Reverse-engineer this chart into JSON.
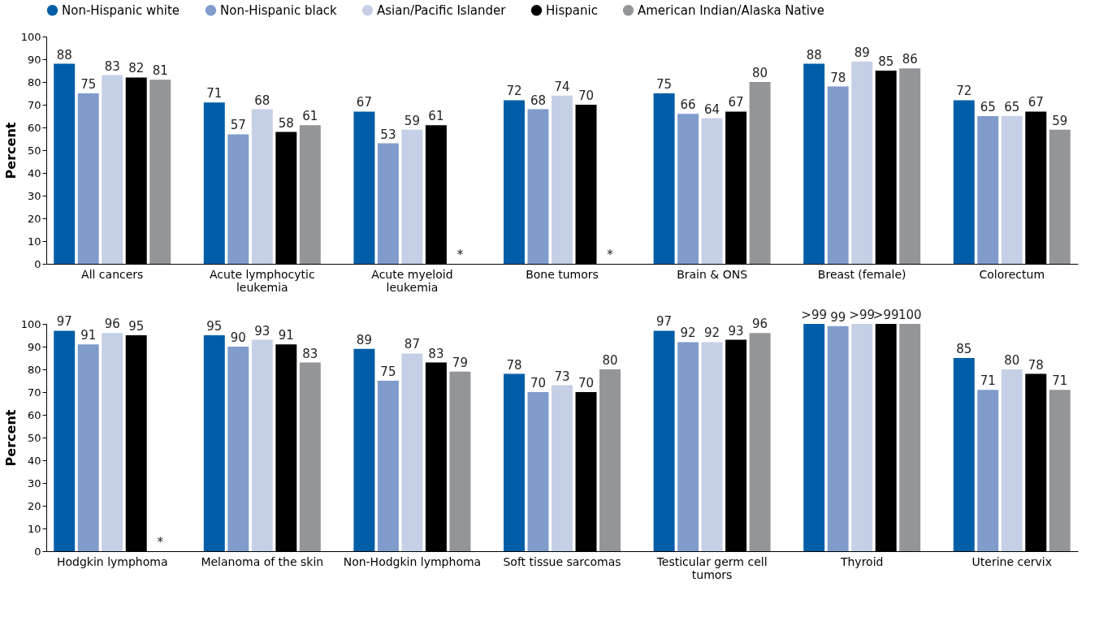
{
  "chart_data": [
    {
      "type": "bar",
      "ylabel": "Percent",
      "categories": [
        "All cancers",
        "Acute lymphocytic leukemia",
        "Acute myeloid leukemia",
        "Bone tumors",
        "Brain & ONS",
        "Breast (female)",
        "Colorectum"
      ],
      "ylim": [
        0,
        100
      ],
      "yticks": [
        0,
        10,
        20,
        30,
        40,
        50,
        60,
        70,
        80,
        90,
        100
      ],
      "grid": false,
      "legend": "top",
      "series": [
        {
          "name": "Non-Hispanic white",
          "color": "#005ea8",
          "values": [
            88,
            71,
            67,
            72,
            75,
            88,
            72
          ],
          "value_labels": [
            "88",
            "71",
            "67",
            "72",
            "75",
            "88",
            "72"
          ]
        },
        {
          "name": "Non-Hispanic black",
          "color": "#7f9ccb",
          "values": [
            75,
            57,
            53,
            68,
            66,
            78,
            65
          ],
          "value_labels": [
            "75",
            "57",
            "53",
            "68",
            "66",
            "78",
            "65"
          ]
        },
        {
          "name": "Asian/Pacific Islander",
          "color": "#c5d0e6",
          "values": [
            83,
            68,
            59,
            74,
            64,
            89,
            65
          ],
          "value_labels": [
            "83",
            "68",
            "59",
            "74",
            "64",
            "89",
            "65"
          ]
        },
        {
          "name": "Hispanic",
          "color": "#000000",
          "values": [
            82,
            58,
            61,
            70,
            67,
            85,
            67
          ],
          "value_labels": [
            "82",
            "58",
            "61",
            "70",
            "67",
            "85",
            "67"
          ]
        },
        {
          "name": "American Indian/Alaska Native",
          "color": "#939598",
          "values": [
            81,
            61,
            null,
            null,
            80,
            86,
            59
          ],
          "value_labels": [
            "81",
            "61",
            "*",
            "*",
            "80",
            "86",
            "59"
          ]
        }
      ]
    },
    {
      "type": "bar",
      "ylabel": "Percent",
      "categories": [
        "Hodgkin lymphoma",
        "Melanoma of the skin",
        "Non-Hodgkin lymphoma",
        "Soft tissue sarcomas",
        "Testicular germ cell tumors",
        "Thyroid",
        "Uterine cervix"
      ],
      "ylim": [
        0,
        100
      ],
      "yticks": [
        0,
        10,
        20,
        30,
        40,
        50,
        60,
        70,
        80,
        90,
        100
      ],
      "grid": false,
      "legend": false,
      "series": [
        {
          "name": "Non-Hispanic white",
          "color": "#005ea8",
          "values": [
            97,
            95,
            89,
            78,
            97,
            100,
            85
          ],
          "value_labels": [
            "97",
            "95",
            "89",
            "78",
            "97",
            ">99",
            "85"
          ]
        },
        {
          "name": "Non-Hispanic black",
          "color": "#7f9ccb",
          "values": [
            91,
            90,
            75,
            70,
            92,
            99,
            71
          ],
          "value_labels": [
            "91",
            "90",
            "75",
            "70",
            "92",
            "99",
            "71"
          ]
        },
        {
          "name": "Asian/Pacific Islander",
          "color": "#c5d0e6",
          "values": [
            96,
            93,
            87,
            73,
            92,
            100,
            80
          ],
          "value_labels": [
            "96",
            "93",
            "87",
            "73",
            "92",
            ">99",
            "80"
          ]
        },
        {
          "name": "Hispanic",
          "color": "#000000",
          "values": [
            95,
            91,
            83,
            70,
            93,
            100,
            78
          ],
          "value_labels": [
            "95",
            "91",
            "83",
            "70",
            "93",
            ">99",
            "78"
          ]
        },
        {
          "name": "American Indian/Alaska Native",
          "color": "#939598",
          "values": [
            null,
            83,
            79,
            80,
            96,
            100,
            71
          ],
          "value_labels": [
            "*",
            "83",
            "79",
            "80",
            "96",
            "100",
            "71"
          ]
        }
      ]
    }
  ]
}
